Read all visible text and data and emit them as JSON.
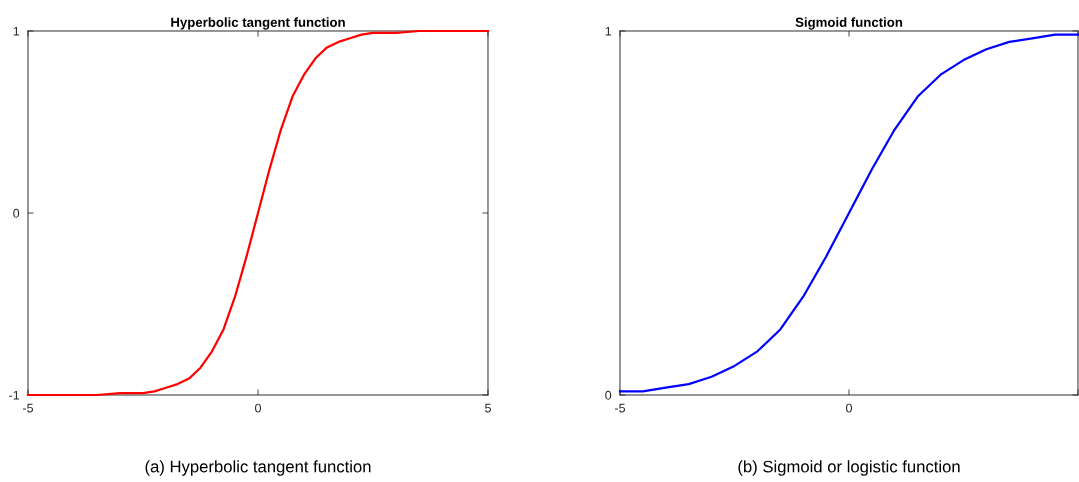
{
  "chart_data": [
    {
      "type": "line",
      "title": "Hyperbolic tangent function",
      "x": [
        -5,
        -4.5,
        -4,
        -3.5,
        -3,
        -2.5,
        -2.25,
        -2,
        -1.75,
        -1.5,
        -1.25,
        -1,
        -0.75,
        -0.5,
        -0.25,
        0,
        0.25,
        0.5,
        0.75,
        1,
        1.25,
        1.5,
        1.75,
        2,
        2.25,
        2.5,
        3,
        3.5,
        4,
        4.5,
        5
      ],
      "series": [
        {
          "color": "#ff0000",
          "values": [
            -1.0,
            -1.0,
            -1.0,
            -1.0,
            -0.99,
            -0.99,
            -0.98,
            -0.96,
            -0.94,
            -0.91,
            -0.85,
            -0.76,
            -0.64,
            -0.46,
            -0.24,
            0,
            0.24,
            0.46,
            0.64,
            0.76,
            0.85,
            0.91,
            0.94,
            0.96,
            0.98,
            0.99,
            0.99,
            1.0,
            1.0,
            1.0,
            1.0
          ]
        }
      ],
      "xlim": [
        -5,
        5
      ],
      "xticks": [
        -5,
        0,
        5
      ],
      "ylim": [
        -1,
        1
      ],
      "yticks": [
        -1,
        0,
        1
      ],
      "annotations": [
        "(a) Hyperbolic tangent function"
      ]
    },
    {
      "type": "line",
      "title": "Sigmoid function",
      "x": [
        -5,
        -4.5,
        -4,
        -3.5,
        -3,
        -2.5,
        -2,
        -1.5,
        -1,
        -0.5,
        0,
        0.5,
        1,
        1.5,
        2,
        2.5,
        3,
        3.5,
        4,
        4.5,
        5
      ],
      "series": [
        {
          "color": "#0000ff",
          "values": [
            0.01,
            0.01,
            0.02,
            0.03,
            0.05,
            0.08,
            0.12,
            0.18,
            0.27,
            0.38,
            0.5,
            0.62,
            0.73,
            0.82,
            0.88,
            0.92,
            0.95,
            0.97,
            0.98,
            0.99,
            0.99
          ]
        }
      ],
      "xlim": [
        -5,
        5
      ],
      "xticks": [
        -5,
        0,
        {
          "value": 5,
          "label": null
        }
      ],
      "ylim": [
        0,
        1
      ],
      "yticks": [
        0,
        1
      ],
      "annotations": [
        "(b) Sigmoid or logistic function"
      ]
    }
  ]
}
